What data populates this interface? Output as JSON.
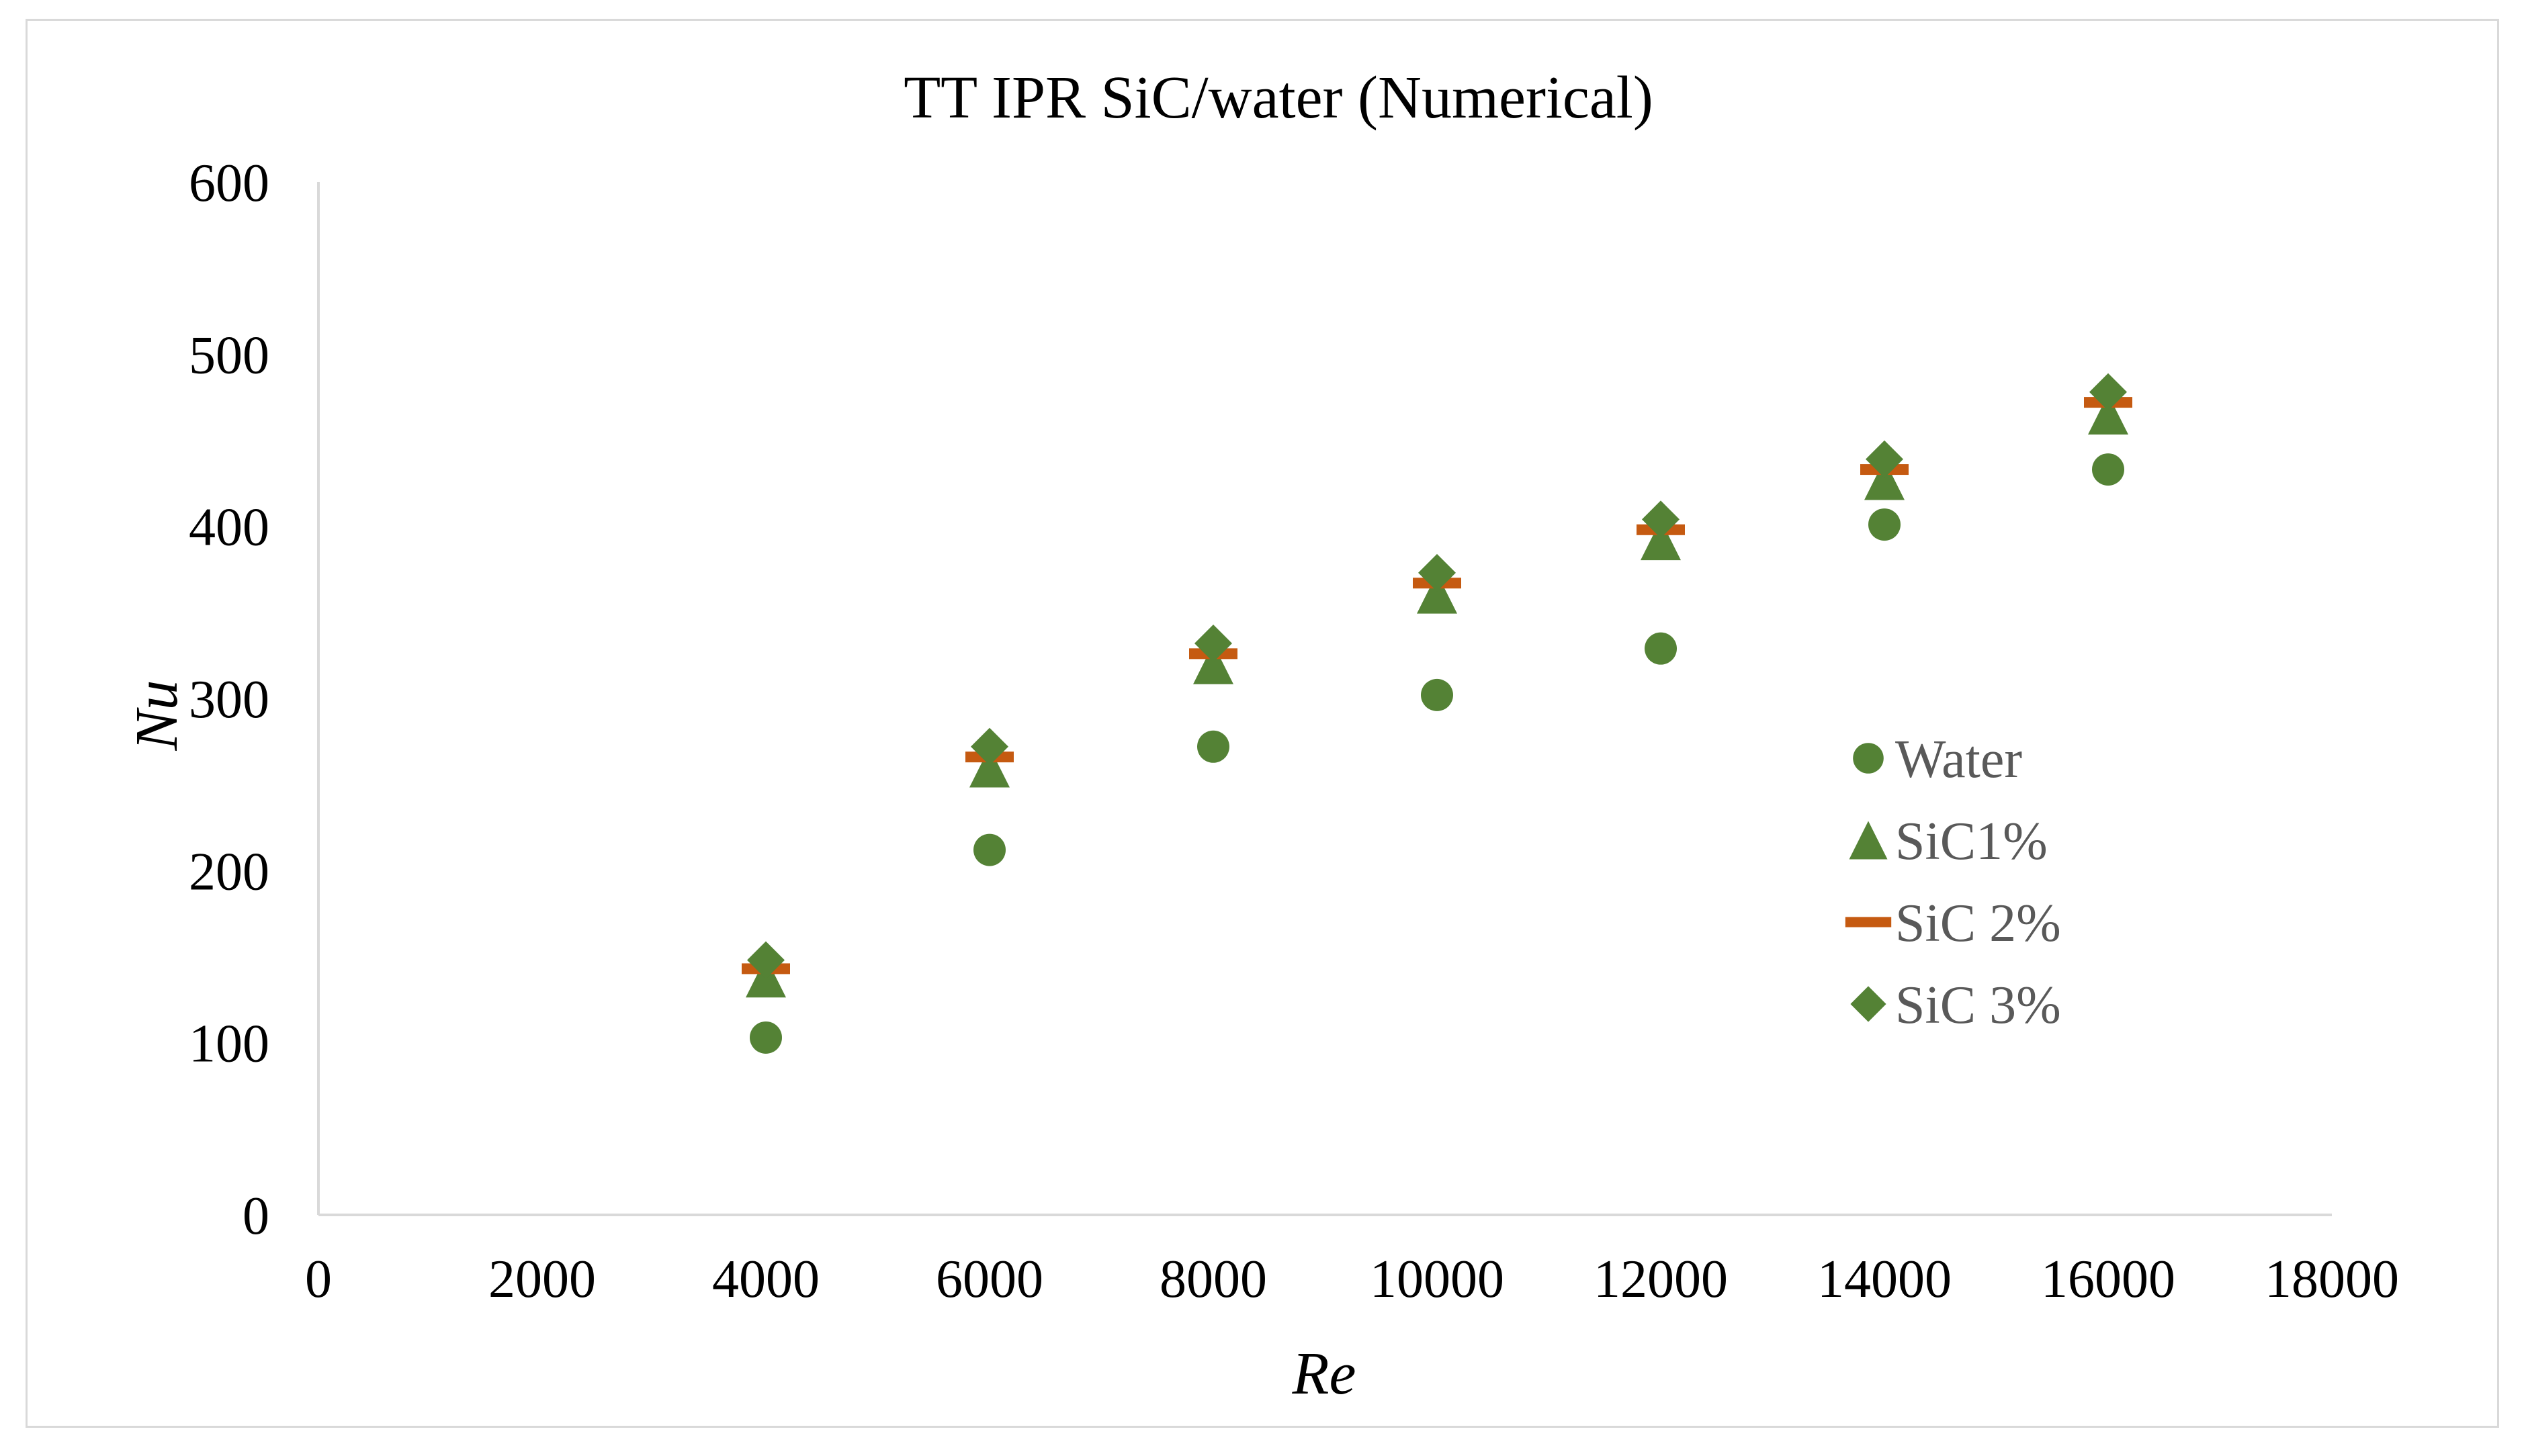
{
  "chart_data": {
    "type": "scatter",
    "title": "TT IPR SiC/water (Numerical)",
    "xlabel": "Re",
    "ylabel": "Nu",
    "xlim": [
      0,
      18000
    ],
    "ylim": [
      0,
      600
    ],
    "xticks": [
      "0",
      "2000",
      "4000",
      "6000",
      "8000",
      "10000",
      "12000",
      "14000",
      "16000",
      "18000"
    ],
    "yticks": [
      "0",
      "100",
      "200",
      "300",
      "400",
      "500",
      "600"
    ],
    "grid": false,
    "legend_position": "right",
    "x": [
      4000,
      6000,
      8000,
      10000,
      12000,
      14000,
      16000
    ],
    "series": [
      {
        "name": "Water",
        "marker": "circle",
        "color": "#548235",
        "values": [
          103,
          212,
          272,
          302,
          329,
          401,
          433
        ]
      },
      {
        "name": "SiC1%",
        "marker": "triangle",
        "color": "#548235",
        "values": [
          138,
          260,
          320,
          361,
          392,
          427,
          465
        ]
      },
      {
        "name": "SiC 2%",
        "marker": "dash",
        "color": "#c55a11",
        "values": [
          143,
          266,
          326,
          367,
          398,
          433,
          472
        ]
      },
      {
        "name": "SiC 3%",
        "marker": "diamond",
        "color": "#548235",
        "values": [
          148,
          272,
          332,
          373,
          404,
          439,
          478
        ]
      }
    ]
  }
}
